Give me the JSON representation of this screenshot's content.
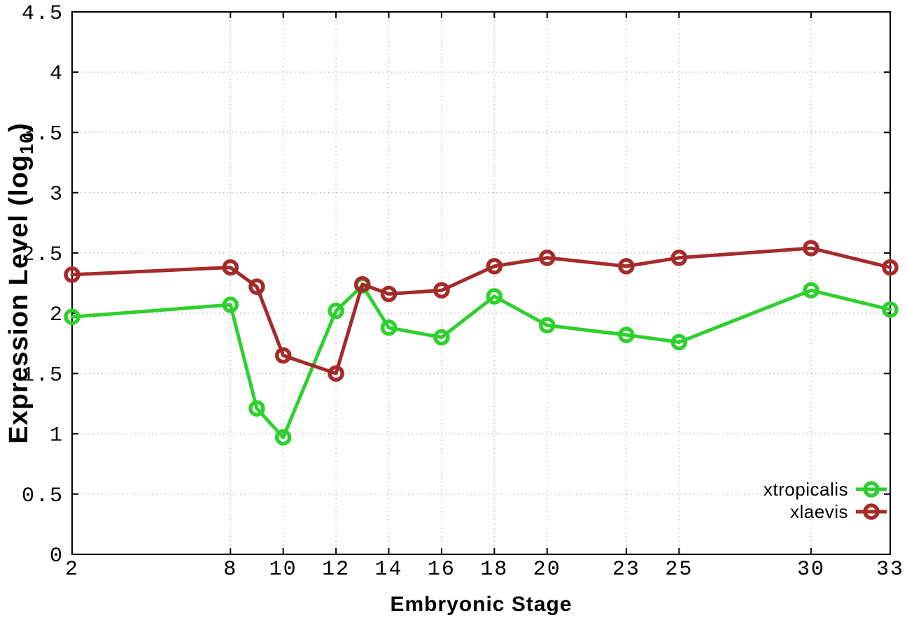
{
  "chart_data": {
    "type": "line",
    "title": "",
    "xlabel": "Embryonic Stage",
    "ylabel": "Expression Level (log10)",
    "ylabel_parts": {
      "main": "Expression Level (log",
      "sub": "10",
      "end": ")"
    },
    "x": [
      2,
      8,
      9,
      10,
      12,
      13,
      14,
      16,
      18,
      20,
      23,
      25,
      30,
      33
    ],
    "series": [
      {
        "name": "xtropicalis",
        "color": "#2ed02e",
        "marker": "open-circle",
        "values": [
          1.97,
          2.07,
          1.21,
          0.97,
          2.02,
          2.23,
          1.88,
          1.8,
          2.14,
          1.9,
          1.82,
          1.76,
          2.19,
          2.03
        ]
      },
      {
        "name": "xlaevis",
        "color": "#a52a2a",
        "marker": "open-circle",
        "values": [
          2.32,
          2.38,
          2.22,
          1.65,
          1.5,
          2.24,
          2.16,
          2.19,
          2.39,
          2.46,
          2.39,
          2.46,
          2.54,
          2.38
        ]
      }
    ],
    "xlim": [
      2,
      33
    ],
    "ylim": [
      0,
      4.5
    ],
    "x_tick_values": [
      2,
      8,
      10,
      12,
      14,
      16,
      18,
      20,
      23,
      25,
      30,
      33
    ],
    "x_tick_labels": [
      "2",
      "8",
      "10",
      "12",
      "14",
      "16",
      "18",
      "20",
      "23",
      "25",
      "30",
      "33"
    ],
    "y_tick_values": [
      0,
      0.5,
      1,
      1.5,
      2,
      2.5,
      3,
      3.5,
      4,
      4.5
    ],
    "y_tick_labels": [
      "0",
      "0.5",
      "1",
      "1.5",
      "2",
      "2.5",
      "3",
      "3.5",
      "4",
      "4.5"
    ],
    "grid": "dotted",
    "legend_position": "inside-bottom-right"
  }
}
